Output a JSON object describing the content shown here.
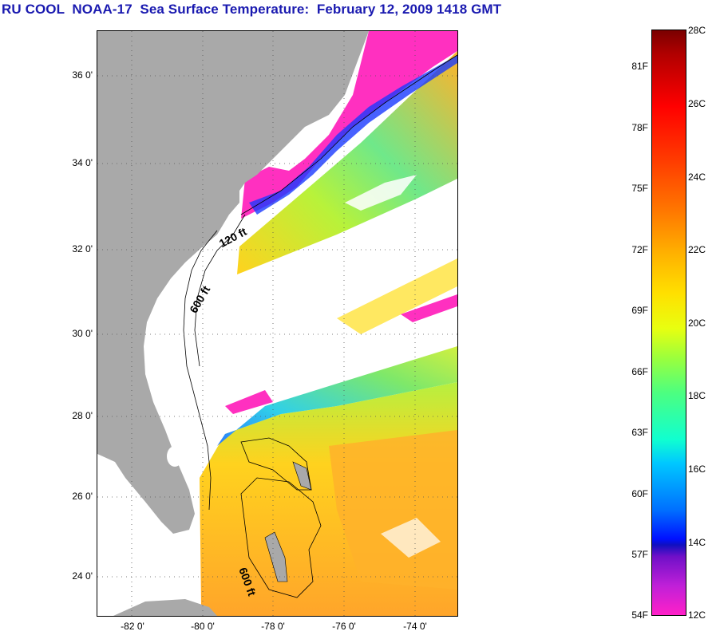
{
  "title": "RU COOL  NOAA-17  Sea Surface Temperature:  February 12, 2009 1418 GMT",
  "map": {
    "lat_ticks": [
      "36 0'",
      "34 0'",
      "32 0'",
      "30 0'",
      "28 0'",
      "26 0'",
      "24 0'"
    ],
    "lon_ticks": [
      "-82 0'",
      "-80 0'",
      "-78 0'",
      "-76 0'",
      "-74 0'"
    ],
    "contour_labels": [
      "120 ft",
      "600 ft",
      "600 ft"
    ]
  },
  "colorbar": {
    "fahrenheit": [
      "81F",
      "78F",
      "75F",
      "72F",
      "69F",
      "66F",
      "63F",
      "60F",
      "57F",
      "54F"
    ],
    "celsius": [
      "28C",
      "26C",
      "24C",
      "22C",
      "20C",
      "18C",
      "16C",
      "14C",
      "12C"
    ]
  },
  "colors": {
    "title": "#1a1ab0",
    "land": "#a9a9a9",
    "cloud": "#ffffff"
  }
}
